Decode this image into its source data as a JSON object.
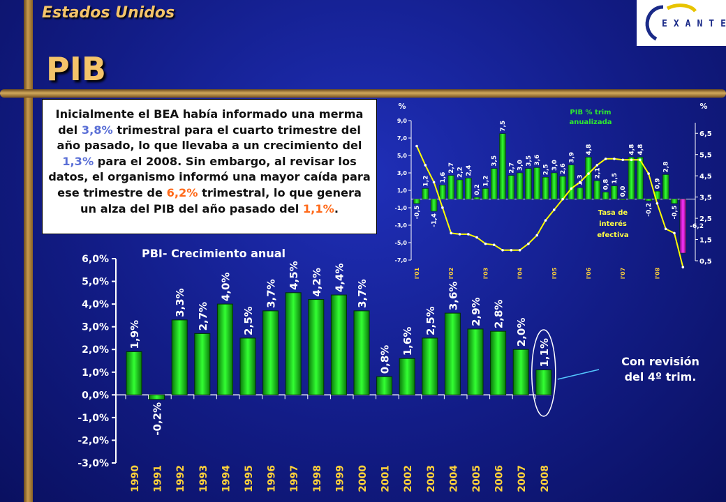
{
  "header": {
    "country": "Estados Unidos",
    "title": "PIB",
    "logo_text": "EXANTE"
  },
  "textbox": {
    "p1": "Inicialmente el BEA había informado una merma del ",
    "v1": "3,8%",
    "p2": " trimestral para el cuarto trimestre del año pasado, lo que llevaba a un crecimiento del ",
    "v2": "1,3%",
    "p3": " para el 2008. Sin embargo, al revisar los datos, el organismo informó una mayor caída para ese trimestre de ",
    "v3": "6,2%",
    "p4": " trimestral, lo que genera un alza del PIB del año pasado del ",
    "v4": "1,1%",
    "p5": "."
  },
  "note": {
    "line1": "Con revisión",
    "line2": "del 4º trim."
  },
  "colors": {
    "bar": "#2fe82f",
    "line": "#ffff00",
    "label": "#ffffff",
    "pos_label": "#ffffff"
  },
  "chart_data": [
    {
      "type": "bar",
      "title": "PBI- Crecimiento anual",
      "categories": [
        "1990",
        "1991",
        "1992",
        "1993",
        "1994",
        "1995",
        "1996",
        "1997",
        "1998",
        "1999",
        "2000",
        "2001",
        "2002",
        "2003",
        "2004",
        "2005",
        "2006",
        "2007",
        "2008"
      ],
      "values": [
        1.9,
        -0.2,
        3.3,
        2.7,
        4.0,
        2.5,
        3.7,
        4.5,
        4.2,
        4.4,
        3.7,
        0.8,
        1.6,
        2.5,
        3.6,
        2.9,
        2.8,
        2.0,
        1.1
      ],
      "value_labels": [
        "1,9%",
        "-0,2%",
        "3,3%",
        "2,7%",
        "4,0%",
        "2,5%",
        "3,7%",
        "4,5%",
        "4,2%",
        "4,4%",
        "3,7%",
        "0,8%",
        "1,6%",
        "2,5%",
        "3,6%",
        "2,9%",
        "2,8%",
        "2,0%",
        "1,1%"
      ],
      "yticks": [
        "6,0%",
        "5,0%",
        "4,0%",
        "3,0%",
        "2,0%",
        "1,0%",
        "0,0%",
        "-1,0%",
        "-2,0%",
        "-3,0%"
      ],
      "ylim": [
        -3,
        6
      ],
      "highlight_category": "2008"
    },
    {
      "type": "bar",
      "series_name": "PIB % trim anualizada",
      "line_series_name": "Tasa de interés efectiva",
      "left_unit": "%",
      "right_unit": "%",
      "x_labels": [
        "I'01",
        "I'02",
        "I'03",
        "I'04",
        "I'05",
        "I'06",
        "I'07",
        "I'08"
      ],
      "values": [
        -0.5,
        1.2,
        -1.4,
        1.6,
        2.7,
        2.2,
        2.4,
        0.2,
        1.2,
        3.5,
        7.5,
        2.7,
        3.0,
        3.5,
        3.6,
        2.5,
        3.0,
        2.6,
        3.9,
        1.3,
        4.8,
        2.1,
        0.8,
        1.5,
        0.0,
        4.8,
        4.8,
        -0.2,
        0.9,
        2.8,
        -0.5,
        -6.2
      ],
      "value_labels": [
        "-0,5",
        "1,2",
        "-1,4",
        "1,6",
        "2,7",
        "2,2",
        "2,4",
        "0,2",
        "1,2",
        "3,5",
        "7,5",
        "2,7",
        "3,0",
        "3,5",
        "3,6",
        "2,5",
        "3,0",
        "2,6",
        "3,9",
        "1,3",
        "4,8",
        "2,1",
        "0,8",
        "1,5",
        "0,0",
        "4,8",
        "4,8",
        "-0,2",
        "0,9",
        "2,8",
        "-0,5",
        "-6,2"
      ],
      "left_ticks": [
        "9,0",
        "7,0",
        "5,0",
        "3,0",
        "1,0",
        "-1,0",
        "-3,0",
        "-5,0",
        "-7,0"
      ],
      "left_ylim": [
        -7,
        9
      ],
      "right_ticks": [
        "6,5",
        "5,5",
        "4,5",
        "3,5",
        "2,5",
        "1,5",
        "0,5"
      ],
      "right_ylim": [
        0.5,
        7.0
      ],
      "line_values": [
        5.9,
        5.0,
        4.2,
        3.0,
        1.8,
        1.75,
        1.75,
        1.6,
        1.3,
        1.25,
        1.0,
        1.0,
        1.0,
        1.3,
        1.7,
        2.4,
        2.9,
        3.4,
        3.9,
        4.2,
        4.6,
        5.0,
        5.3,
        5.3,
        5.25,
        5.25,
        5.25,
        4.6,
        3.2,
        2.0,
        1.8,
        0.2
      ]
    }
  ]
}
